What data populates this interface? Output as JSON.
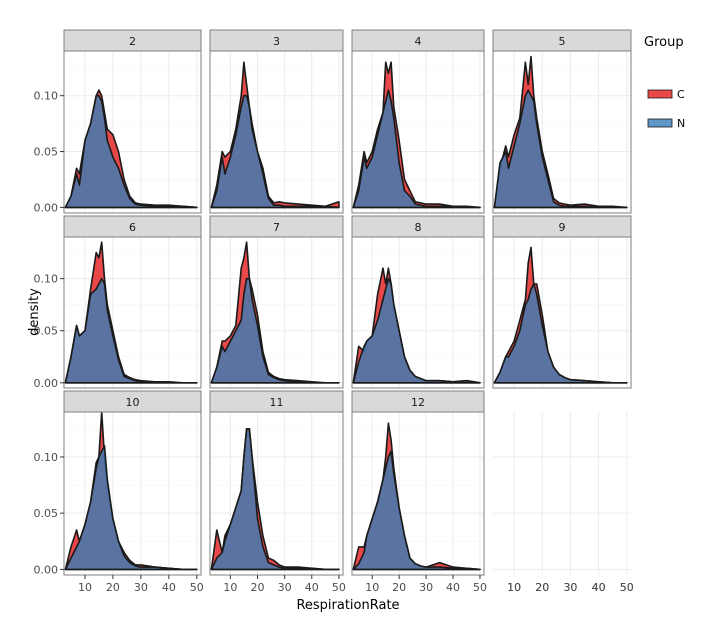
{
  "chart_data": {
    "type": "area",
    "subtype": "faceted density plot",
    "xlabel": "RespirationRate",
    "ylabel": "density",
    "xlim": [
      2.5,
      51.5
    ],
    "ylim": [
      -0.005,
      0.14
    ],
    "x_ticks": [
      10,
      20,
      30,
      40,
      50
    ],
    "y_ticks": [
      0.0,
      0.05,
      0.1
    ],
    "y_tick_labels": [
      "0.00",
      "0.05",
      "0.10"
    ],
    "grid": true,
    "legend": {
      "title": "Group",
      "position": "right",
      "entries": [
        {
          "label": "C",
          "color": "#e41a1c"
        },
        {
          "label": "N",
          "color": "#377eb8"
        }
      ]
    },
    "x_grid": [
      3,
      5,
      7,
      8,
      10,
      12,
      14,
      15,
      16,
      17,
      18,
      20,
      22,
      24,
      26,
      28,
      30,
      35,
      40,
      45,
      50
    ],
    "facets": [
      {
        "label": "2",
        "C": [
          0,
          0.01,
          0.035,
          0.03,
          0.06,
          0.075,
          0.1,
          0.105,
          0.1,
          0.085,
          0.07,
          0.065,
          0.05,
          0.025,
          0.01,
          0.004,
          0.003,
          0.002,
          0.002,
          0.001,
          0
        ],
        "N": [
          0,
          0.01,
          0.03,
          0.02,
          0.06,
          0.075,
          0.1,
          0.1,
          0.095,
          0.08,
          0.06,
          0.045,
          0.035,
          0.02,
          0.008,
          0.003,
          0.002,
          0.001,
          0.001,
          0.001,
          0
        ]
      },
      {
        "label": "3",
        "C": [
          0,
          0.02,
          0.05,
          0.045,
          0.05,
          0.07,
          0.1,
          0.13,
          0.11,
          0.09,
          0.075,
          0.05,
          0.035,
          0.01,
          0.004,
          0.005,
          0.004,
          0.003,
          0.002,
          0.001,
          0.005
        ],
        "N": [
          0,
          0.015,
          0.045,
          0.03,
          0.045,
          0.065,
          0.09,
          0.1,
          0.1,
          0.09,
          0.07,
          0.05,
          0.03,
          0.008,
          0.002,
          0.002,
          0.001,
          0.001,
          0.001,
          0.001,
          0
        ]
      },
      {
        "label": "4",
        "C": [
          0,
          0.02,
          0.05,
          0.04,
          0.05,
          0.07,
          0.085,
          0.13,
          0.12,
          0.13,
          0.09,
          0.06,
          0.025,
          0.015,
          0.005,
          0.004,
          0.003,
          0.003,
          0.001,
          0.001,
          0
        ],
        "N": [
          0,
          0.015,
          0.045,
          0.035,
          0.045,
          0.065,
          0.085,
          0.095,
          0.105,
          0.095,
          0.08,
          0.04,
          0.015,
          0.01,
          0.003,
          0.002,
          0.001,
          0.001,
          0.001,
          0,
          0
        ]
      },
      {
        "label": "5",
        "C": [
          0,
          0.035,
          0.055,
          0.045,
          0.065,
          0.08,
          0.13,
          0.11,
          0.135,
          0.1,
          0.08,
          0.05,
          0.03,
          0.008,
          0.004,
          0.003,
          0.002,
          0.003,
          0.001,
          0.001,
          0
        ],
        "N": [
          0,
          0.04,
          0.05,
          0.035,
          0.055,
          0.075,
          0.1,
          0.105,
          0.1,
          0.095,
          0.075,
          0.045,
          0.025,
          0.005,
          0.002,
          0.001,
          0.001,
          0.001,
          0,
          0,
          0
        ]
      },
      {
        "label": "6",
        "C": [
          0,
          0.025,
          0.055,
          0.045,
          0.05,
          0.09,
          0.125,
          0.12,
          0.135,
          0.1,
          0.075,
          0.05,
          0.025,
          0.008,
          0.005,
          0.003,
          0.002,
          0.001,
          0.001,
          0,
          0
        ],
        "N": [
          0,
          0.025,
          0.055,
          0.045,
          0.05,
          0.085,
          0.09,
          0.095,
          0.1,
          0.095,
          0.07,
          0.045,
          0.022,
          0.006,
          0.004,
          0.002,
          0.001,
          0.001,
          0,
          0,
          0
        ]
      },
      {
        "label": "7",
        "C": [
          0,
          0.015,
          0.04,
          0.04,
          0.045,
          0.055,
          0.11,
          0.12,
          0.135,
          0.1,
          0.09,
          0.065,
          0.03,
          0.01,
          0.006,
          0.004,
          0.003,
          0.002,
          0.001,
          0,
          0
        ],
        "N": [
          0,
          0.015,
          0.035,
          0.03,
          0.04,
          0.05,
          0.06,
          0.085,
          0.1,
          0.1,
          0.08,
          0.055,
          0.025,
          0.008,
          0.005,
          0.003,
          0.002,
          0.001,
          0,
          0,
          0
        ]
      },
      {
        "label": "8",
        "C": [
          0,
          0.035,
          0.03,
          0.04,
          0.045,
          0.085,
          0.11,
          0.095,
          0.11,
          0.095,
          0.075,
          0.05,
          0.025,
          0.012,
          0.006,
          0.004,
          0.002,
          0.002,
          0.001,
          0.002,
          0
        ],
        "N": [
          0,
          0.02,
          0.035,
          0.04,
          0.045,
          0.06,
          0.08,
          0.09,
          0.1,
          0.095,
          0.075,
          0.05,
          0.025,
          0.012,
          0.006,
          0.004,
          0.002,
          0.002,
          0.001,
          0.002,
          0
        ],
        "_note": "C also shows early peak ~0.035 near x=5"
      },
      {
        "label": "9",
        "C": [
          0,
          0.01,
          0.025,
          0.03,
          0.04,
          0.06,
          0.08,
          0.115,
          0.13,
          0.095,
          0.095,
          0.065,
          0.03,
          0.015,
          0.008,
          0.005,
          0.003,
          0.002,
          0.001,
          0,
          0
        ],
        "N": [
          0,
          0.01,
          0.025,
          0.025,
          0.035,
          0.05,
          0.075,
          0.08,
          0.09,
          0.095,
          0.085,
          0.055,
          0.03,
          0.015,
          0.008,
          0.005,
          0.003,
          0.002,
          0.001,
          0,
          0
        ]
      },
      {
        "label": "10",
        "C": [
          0,
          0.02,
          0.035,
          0.025,
          0.04,
          0.06,
          0.095,
          0.1,
          0.14,
          0.1,
          0.075,
          0.045,
          0.025,
          0.015,
          0.008,
          0.004,
          0.004,
          0.002,
          0.001,
          0,
          0
        ],
        "N": [
          0,
          0.01,
          0.02,
          0.025,
          0.04,
          0.06,
          0.09,
          0.1,
          0.105,
          0.11,
          0.08,
          0.045,
          0.025,
          0.012,
          0.006,
          0.003,
          0.002,
          0.002,
          0.001,
          0,
          0
        ]
      },
      {
        "label": "11",
        "C": [
          0,
          0.035,
          0.015,
          0.03,
          0.04,
          0.055,
          0.07,
          0.1,
          0.125,
          0.125,
          0.1,
          0.06,
          0.03,
          0.01,
          0.008,
          0.004,
          0.002,
          0.002,
          0.001,
          0,
          0
        ],
        "N": [
          0,
          0.01,
          0.015,
          0.025,
          0.04,
          0.055,
          0.07,
          0.1,
          0.125,
          0.125,
          0.1,
          0.045,
          0.02,
          0.006,
          0.004,
          0.002,
          0.001,
          0.001,
          0.001,
          0,
          0
        ]
      },
      {
        "label": "12",
        "C": [
          0,
          0.02,
          0.02,
          0.03,
          0.045,
          0.06,
          0.08,
          0.1,
          0.13,
          0.115,
          0.09,
          0.055,
          0.03,
          0.01,
          0.005,
          0.003,
          0.002,
          0.006,
          0.002,
          0.001,
          0
        ],
        "N": [
          0,
          0.005,
          0.015,
          0.03,
          0.045,
          0.06,
          0.08,
          0.09,
          0.1,
          0.105,
          0.085,
          0.055,
          0.03,
          0.01,
          0.005,
          0.003,
          0.002,
          0.002,
          0.001,
          0.001,
          0
        ]
      }
    ]
  },
  "colors": {
    "C_fill": "#e41a1c",
    "N_fill": "#377eb8",
    "overlap_fill": "#4e5e95",
    "outline": "#1a1a1a",
    "strip_bg": "#d9d9d9",
    "panel_border": "#7f7f7f",
    "grid": "#ebebeb"
  }
}
